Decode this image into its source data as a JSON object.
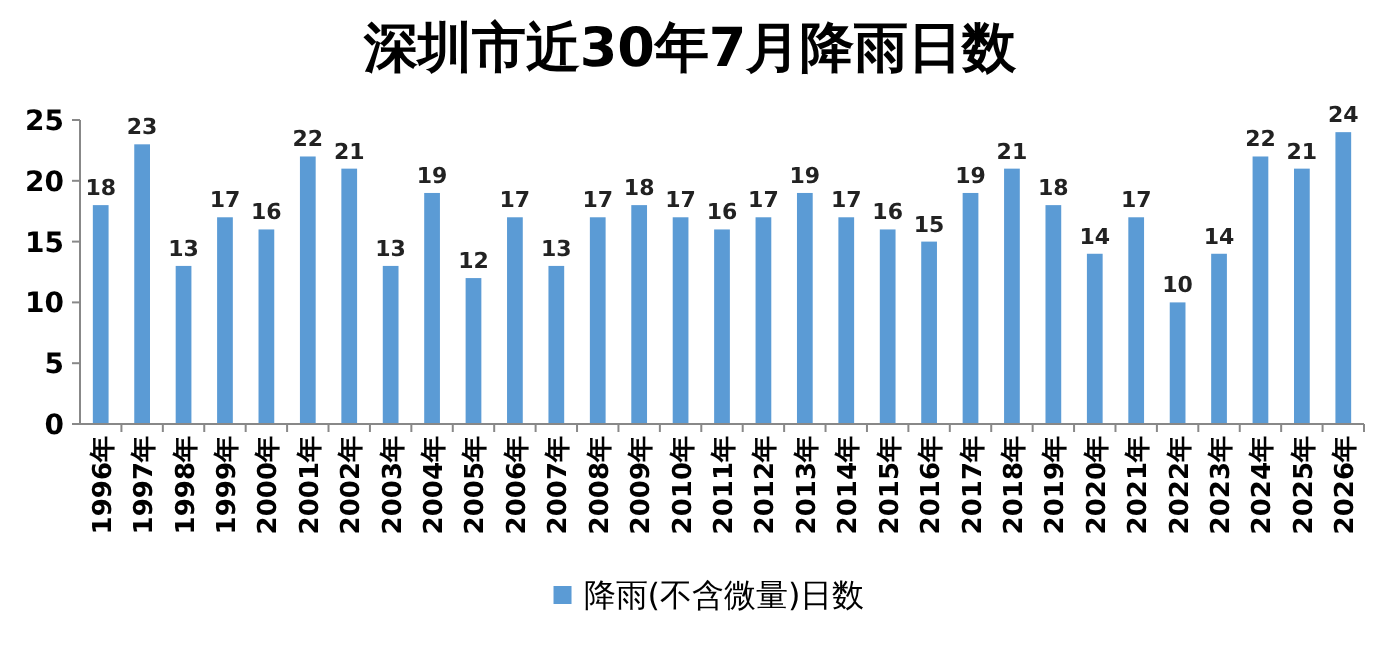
{
  "chart_data": {
    "type": "bar",
    "title": "深圳市近30年7月降雨日数",
    "categories": [
      "1996年",
      "1997年",
      "1998年",
      "1999年",
      "2000年",
      "2001年",
      "2002年",
      "2003年",
      "2004年",
      "2005年",
      "2006年",
      "2007年",
      "2008年",
      "2009年",
      "2010年",
      "2011年",
      "2012年",
      "2013年",
      "2014年",
      "2015年",
      "2016年",
      "2017年",
      "2018年",
      "2019年",
      "2020年",
      "2021年",
      "2022年",
      "2023年",
      "2024年",
      "2025年",
      "2026年"
    ],
    "series": [
      {
        "name": "降雨(不含微量)日数",
        "color": "#5b9bd5",
        "values": [
          18,
          23,
          13,
          17,
          16,
          22,
          21,
          13,
          19,
          12,
          17,
          13,
          17,
          18,
          17,
          16,
          17,
          19,
          17,
          16,
          15,
          19,
          21,
          18,
          14,
          17,
          10,
          14,
          22,
          21,
          24
        ]
      }
    ],
    "ylim": [
      0,
      25
    ],
    "yticks": [
      0,
      5,
      10,
      15,
      20,
      25
    ],
    "data_labels": true,
    "legend": "bottom",
    "grid": false
  }
}
